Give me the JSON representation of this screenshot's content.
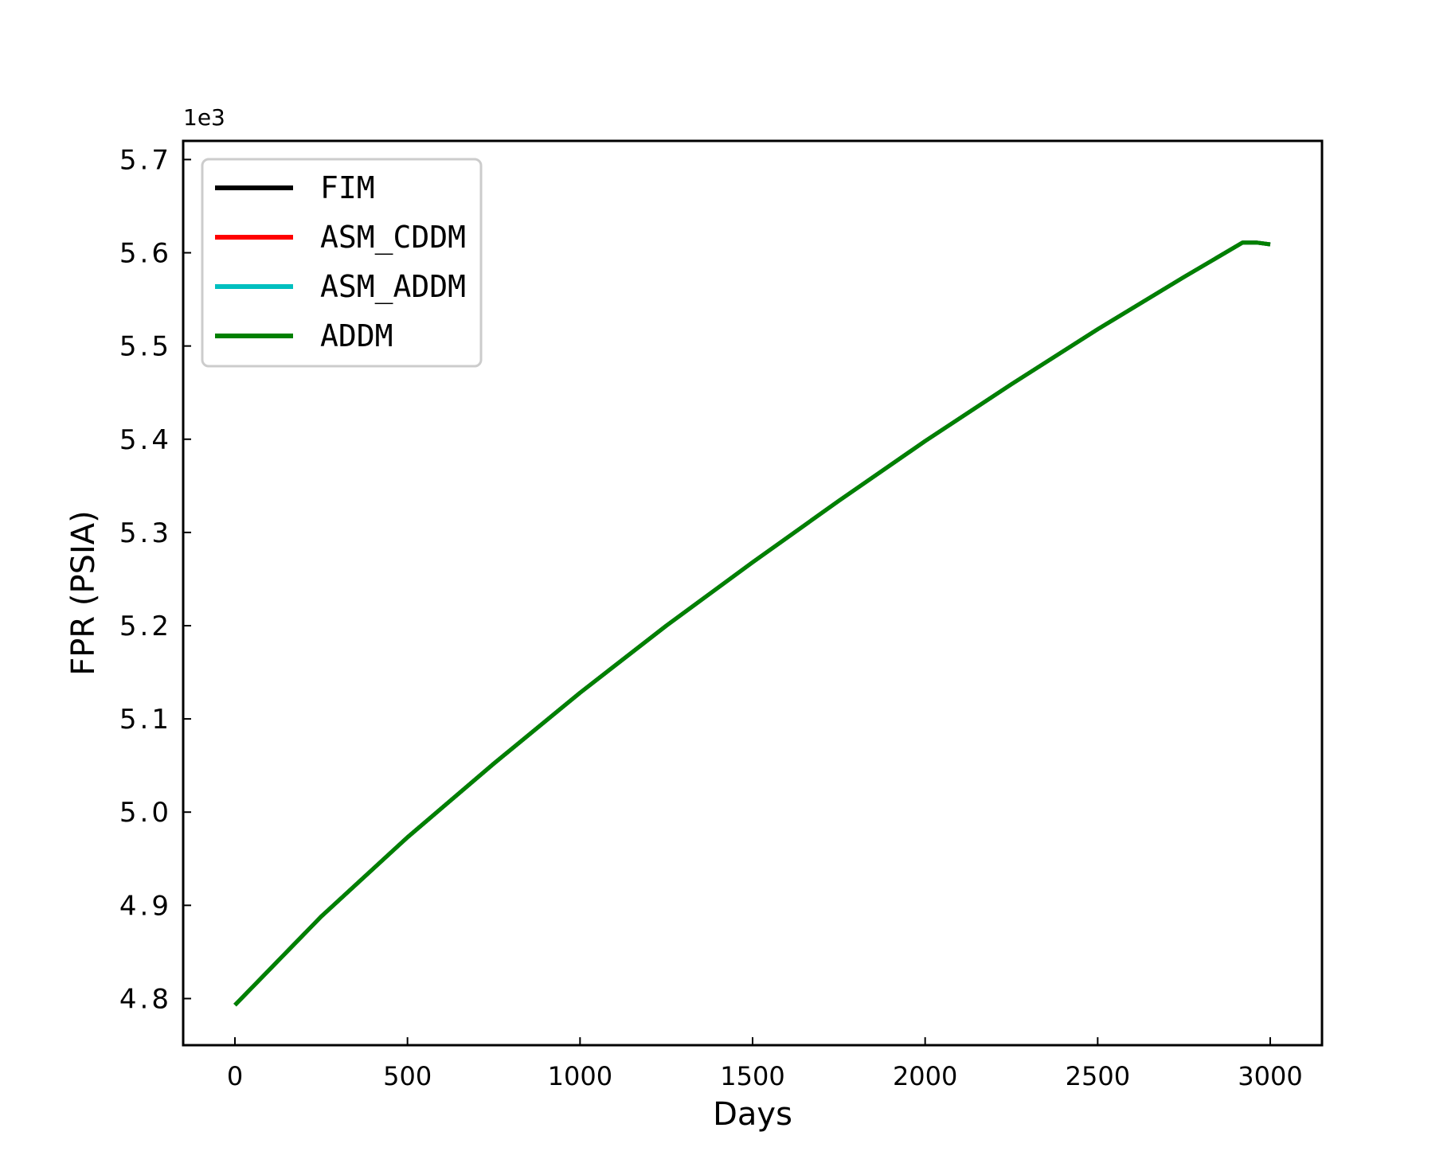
{
  "chart_data": {
    "type": "line",
    "title": "",
    "xlabel": "Days",
    "ylabel": "FPR (PSIA)",
    "y_offset_text": "1e3",
    "xlim": [
      -150,
      3150
    ],
    "ylim": [
      4.75,
      5.72
    ],
    "xticks": [
      0,
      500,
      1000,
      1500,
      2000,
      2500,
      3000
    ],
    "xtick_labels": [
      "0",
      "500",
      "1000",
      "1500",
      "2000",
      "2500",
      "3000"
    ],
    "yticks": [
      4.8,
      4.9,
      5.0,
      5.1,
      5.2,
      5.3,
      5.4,
      5.5,
      5.6,
      5.7
    ],
    "ytick_labels": [
      "4.8",
      "4.9",
      "5.0",
      "5.1",
      "5.2",
      "5.3",
      "5.4",
      "5.5",
      "5.6",
      "5.7"
    ],
    "grid": false,
    "legend": {
      "position": "upper-left"
    },
    "x": [
      0,
      250,
      500,
      750,
      1000,
      1250,
      1500,
      1750,
      2000,
      2250,
      2500,
      2750,
      2920,
      2960,
      3000
    ],
    "series": [
      {
        "name": "FIM",
        "color": "#000000",
        "values": [
          4.793,
          4.888,
          4.973,
          5.052,
          5.128,
          5.2,
          5.268,
          5.334,
          5.398,
          5.459,
          5.518,
          5.574,
          5.611,
          5.611,
          5.609
        ]
      },
      {
        "name": "ASM_CDDM",
        "color": "#ff0000",
        "values": [
          4.793,
          4.888,
          4.973,
          5.052,
          5.128,
          5.2,
          5.268,
          5.334,
          5.398,
          5.459,
          5.518,
          5.574,
          5.611,
          5.611,
          5.609
        ]
      },
      {
        "name": "ASM_ADDM",
        "color": "#00bfbf",
        "values": [
          4.793,
          4.888,
          4.973,
          5.052,
          5.128,
          5.2,
          5.268,
          5.334,
          5.398,
          5.459,
          5.518,
          5.574,
          5.611,
          5.611,
          5.609
        ]
      },
      {
        "name": "ADDM",
        "color": "#008000",
        "values": [
          4.793,
          4.888,
          4.973,
          5.052,
          5.128,
          5.2,
          5.268,
          5.334,
          5.398,
          5.459,
          5.518,
          5.574,
          5.611,
          5.611,
          5.609
        ]
      }
    ]
  }
}
